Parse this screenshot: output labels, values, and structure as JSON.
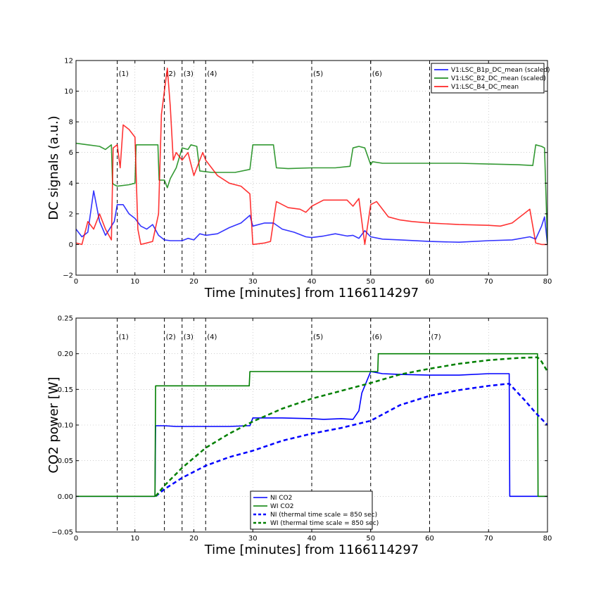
{
  "chart_data": [
    {
      "type": "line",
      "xlabel": "Time [minutes] from 1166114297",
      "ylabel": "DC signals (a.u.)",
      "xlim": [
        0,
        80
      ],
      "ylim": [
        -2,
        12
      ],
      "xticks": [
        0,
        10,
        20,
        30,
        40,
        50,
        60,
        70,
        80
      ],
      "yticks": [
        -2,
        0,
        2,
        4,
        6,
        8,
        10,
        12
      ],
      "grid": true,
      "legend_position": "top-right",
      "events": [
        {
          "x": 7,
          "label": "(1)"
        },
        {
          "x": 15,
          "label": "(2)"
        },
        {
          "x": 18,
          "label": "(3)"
        },
        {
          "x": 22,
          "label": "(4)"
        },
        {
          "x": 40,
          "label": "(5)"
        },
        {
          "x": 50,
          "label": "(6)"
        },
        {
          "x": 60,
          "label": ""
        }
      ],
      "series": [
        {
          "name": "V1:LSC_B1p_DC_mean (scaled)",
          "color": "#0000ff",
          "style": "solid",
          "x": [
            0,
            1,
            2,
            3,
            4,
            5,
            6,
            6.5,
            7,
            8,
            9,
            10,
            11,
            12,
            13,
            14,
            15,
            16,
            17,
            18,
            19,
            20,
            21,
            22,
            24,
            26,
            28,
            29.5,
            30,
            32,
            33.5,
            35,
            37,
            39,
            40,
            42,
            44,
            46,
            47,
            48,
            49,
            50,
            52,
            55,
            60,
            65,
            70,
            74,
            77,
            78,
            79,
            79.5,
            80
          ],
          "y": [
            1.0,
            0.5,
            0.8,
            3.5,
            1.5,
            0.6,
            1.2,
            1.5,
            2.6,
            2.6,
            2.0,
            1.7,
            1.2,
            1.0,
            1.3,
            0.6,
            0.3,
            0.25,
            0.25,
            0.25,
            0.4,
            0.3,
            0.7,
            0.6,
            0.7,
            1.1,
            1.4,
            1.9,
            1.2,
            1.4,
            1.4,
            1.0,
            0.8,
            0.5,
            0.45,
            0.55,
            0.7,
            0.55,
            0.6,
            0.4,
            0.9,
            0.5,
            0.35,
            0.3,
            0.2,
            0.15,
            0.25,
            0.3,
            0.5,
            0.35,
            1.2,
            1.8,
            0.0
          ]
        },
        {
          "name": "V1:LSC_B2_DC_mean (scaled)",
          "color": "#007f00",
          "style": "solid",
          "x": [
            0,
            2,
            4,
            5,
            6,
            6.2,
            6.5,
            7,
            9,
            10,
            10.2,
            11,
            12,
            13.9,
            14.1,
            15,
            15.5,
            16,
            17,
            18,
            19,
            19.5,
            20.5,
            21,
            23,
            25,
            27,
            29.5,
            30,
            32,
            33.5,
            34,
            36,
            40,
            44,
            46.5,
            47,
            48,
            49,
            50,
            50.3,
            52,
            55,
            60,
            65,
            70,
            75,
            77.5,
            78,
            79,
            79.5,
            80
          ],
          "y": [
            6.6,
            6.5,
            6.4,
            6.2,
            6.5,
            4.0,
            3.9,
            3.8,
            3.9,
            4.0,
            6.5,
            6.5,
            6.5,
            6.5,
            4.2,
            4.2,
            3.7,
            4.3,
            5.0,
            6.3,
            6.2,
            6.5,
            6.4,
            4.8,
            4.7,
            4.7,
            4.7,
            4.9,
            6.5,
            6.5,
            6.5,
            5.0,
            4.95,
            5.0,
            5.0,
            5.1,
            6.3,
            6.4,
            6.3,
            5.2,
            5.4,
            5.3,
            5.3,
            5.3,
            5.3,
            5.25,
            5.2,
            5.15,
            6.5,
            6.4,
            6.3,
            0.0
          ]
        },
        {
          "name": "V1:LSC_B4_DC_mean",
          "color": "#ff0000",
          "style": "solid",
          "x": [
            0,
            1,
            2,
            3,
            4,
            5,
            6,
            6.3,
            7,
            7.5,
            8,
            9,
            10,
            10.5,
            11,
            12,
            13,
            14,
            14.5,
            15,
            15.5,
            16,
            16.5,
            17,
            18,
            19,
            20,
            21,
            21.5,
            22,
            24,
            26,
            28,
            29.5,
            30,
            32,
            33,
            34,
            36,
            38,
            39,
            40,
            42,
            44,
            46,
            47,
            48,
            49,
            50,
            51,
            52,
            53,
            55,
            57,
            60,
            65,
            70,
            72,
            74,
            75,
            76,
            77,
            78,
            79,
            80
          ],
          "y": [
            0.1,
            0.0,
            1.5,
            1.0,
            2.0,
            1.0,
            0.3,
            6.3,
            6.5,
            5.0,
            7.8,
            7.5,
            7.0,
            1.0,
            0.0,
            0.1,
            0.2,
            2.0,
            8.5,
            10.0,
            11.5,
            9.0,
            5.5,
            6.0,
            5.5,
            6.0,
            4.5,
            5.5,
            6.0,
            5.5,
            4.5,
            4.0,
            3.8,
            3.3,
            0.0,
            0.1,
            0.2,
            2.8,
            2.4,
            2.3,
            2.1,
            2.5,
            2.9,
            2.9,
            2.9,
            2.5,
            3.0,
            0.0,
            2.6,
            2.8,
            2.3,
            1.8,
            1.6,
            1.5,
            1.4,
            1.3,
            1.25,
            1.2,
            1.4,
            1.7,
            2.0,
            2.3,
            0.1,
            0.0,
            0.0
          ]
        }
      ]
    },
    {
      "type": "line",
      "xlabel": "Time [minutes] from 1166114297",
      "ylabel": "CO2 power [W]",
      "xlim": [
        0,
        80
      ],
      "ylim": [
        -0.05,
        0.25
      ],
      "xticks": [
        0,
        10,
        20,
        30,
        40,
        50,
        60,
        70,
        80
      ],
      "yticks": [
        -0.05,
        0.0,
        0.05,
        0.1,
        0.15,
        0.2,
        0.25
      ],
      "ytick_labels": [
        "−0.05",
        "0.00",
        "0.05",
        "0.10",
        "0.15",
        "0.20",
        "0.25"
      ],
      "grid": true,
      "legend_position": "bottom-center",
      "events": [
        {
          "x": 7,
          "label": "(1)"
        },
        {
          "x": 15,
          "label": "(2)"
        },
        {
          "x": 18,
          "label": "(3)"
        },
        {
          "x": 22,
          "label": "(4)"
        },
        {
          "x": 40,
          "label": "(5)"
        },
        {
          "x": 50,
          "label": "(6)"
        },
        {
          "x": 60,
          "label": "(7)"
        }
      ],
      "series": [
        {
          "name": "NI CO2",
          "color": "#0000ff",
          "style": "solid",
          "x": [
            0,
            13.4,
            13.5,
            15,
            17,
            20,
            23,
            26,
            29,
            29.5,
            30,
            35,
            40,
            42,
            45,
            47,
            48,
            48.5,
            49,
            49.5,
            50,
            52,
            55,
            60,
            65,
            70,
            73.5,
            73.6,
            80
          ],
          "y": [
            0,
            0,
            0.099,
            0.099,
            0.098,
            0.098,
            0.098,
            0.098,
            0.099,
            0.099,
            0.11,
            0.11,
            0.109,
            0.108,
            0.109,
            0.108,
            0.12,
            0.145,
            0.155,
            0.165,
            0.175,
            0.172,
            0.171,
            0.17,
            0.17,
            0.172,
            0.172,
            0.0,
            0.0
          ]
        },
        {
          "name": "WI CO2",
          "color": "#007f00",
          "style": "solid",
          "x": [
            0,
            13.4,
            13.5,
            29.4,
            29.5,
            51.2,
            51.3,
            78.3,
            78.4,
            80
          ],
          "y": [
            0,
            0,
            0.155,
            0.155,
            0.175,
            0.175,
            0.2,
            0.2,
            0.0,
            0.0
          ]
        },
        {
          "name": "NI (thermal time scale = 850 sec)",
          "color": "#0000ff",
          "style": "dashed",
          "x": [
            13.5,
            15,
            18,
            22,
            26,
            30,
            35,
            40,
            45,
            50,
            55,
            60,
            65,
            70,
            73.5,
            76,
            78,
            80
          ],
          "y": [
            0,
            0.01,
            0.026,
            0.043,
            0.055,
            0.064,
            0.078,
            0.088,
            0.096,
            0.106,
            0.128,
            0.141,
            0.149,
            0.155,
            0.158,
            0.136,
            0.117,
            0.1
          ]
        },
        {
          "name": "WI (thermal time scale = 850 sec)",
          "color": "#007f00",
          "style": "dashed",
          "x": [
            13.5,
            15,
            18,
            22,
            26,
            30,
            35,
            40,
            45,
            50,
            55,
            60,
            65,
            70,
            75,
            78.3,
            79,
            80
          ],
          "y": [
            0,
            0.015,
            0.04,
            0.068,
            0.088,
            0.105,
            0.123,
            0.137,
            0.148,
            0.159,
            0.171,
            0.179,
            0.186,
            0.191,
            0.194,
            0.195,
            0.189,
            0.175
          ]
        }
      ]
    }
  ]
}
